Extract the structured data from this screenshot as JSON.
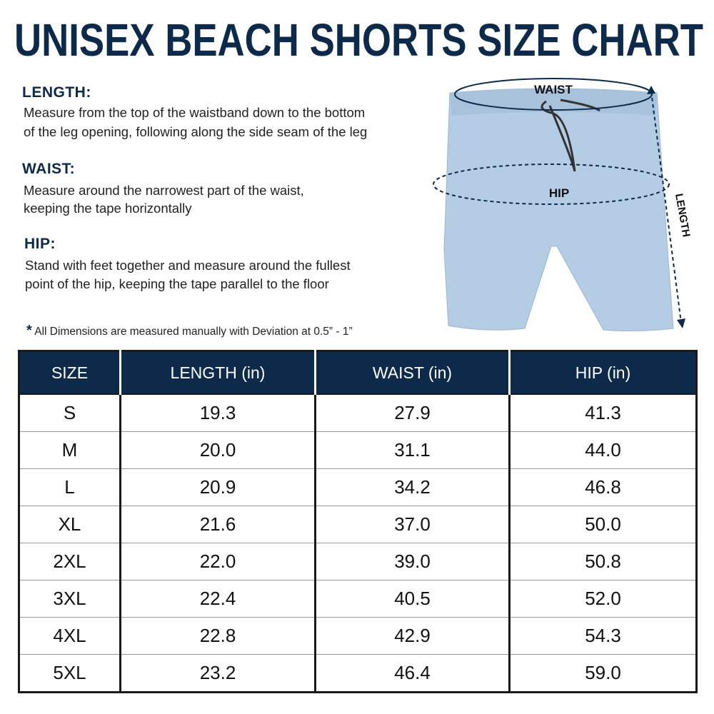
{
  "header": {
    "title": "UNISEX BEACH SHORTS SIZE CHART"
  },
  "sections": [
    {
      "heading": "LENGTH:",
      "lines": [
        "Measure from the top of the waistband down to the bottom",
        "of the leg opening, following along the side seam of the leg"
      ]
    },
    {
      "heading": "WAIST:",
      "lines": [
        "Measure around the narrowest part of the waist,",
        "keeping the tape horizontally"
      ]
    },
    {
      "heading": "HIP:",
      "lines": [
        "Stand with feet together and measure around the fullest",
        "point of the hip, keeping the tape parallel to the floor"
      ]
    }
  ],
  "diagram": {
    "waist": "WAIST",
    "hip": "HIP",
    "length": "LENGTH"
  },
  "note": {
    "mark": "*",
    "text": "All Dimensions are measured manually with Deviation at 0.5” - 1”"
  },
  "table": {
    "headers": [
      "SIZE",
      "LENGTH (in)",
      "WAIST (in)",
      "HIP (in)"
    ],
    "rows": [
      [
        "S",
        "19.3",
        "27.9",
        "41.3"
      ],
      [
        "M",
        "20.0",
        "31.1",
        "44.0"
      ],
      [
        "L",
        "20.9",
        "34.2",
        "46.8"
      ],
      [
        "XL",
        "21.6",
        "37.0",
        "50.0"
      ],
      [
        "2XL",
        "22.0",
        "39.0",
        "50.8"
      ],
      [
        "3XL",
        "22.4",
        "40.5",
        "52.0"
      ],
      [
        "4XL",
        "22.8",
        "42.9",
        "54.3"
      ],
      [
        "5XL",
        "23.2",
        "46.4",
        "59.0"
      ]
    ]
  }
}
